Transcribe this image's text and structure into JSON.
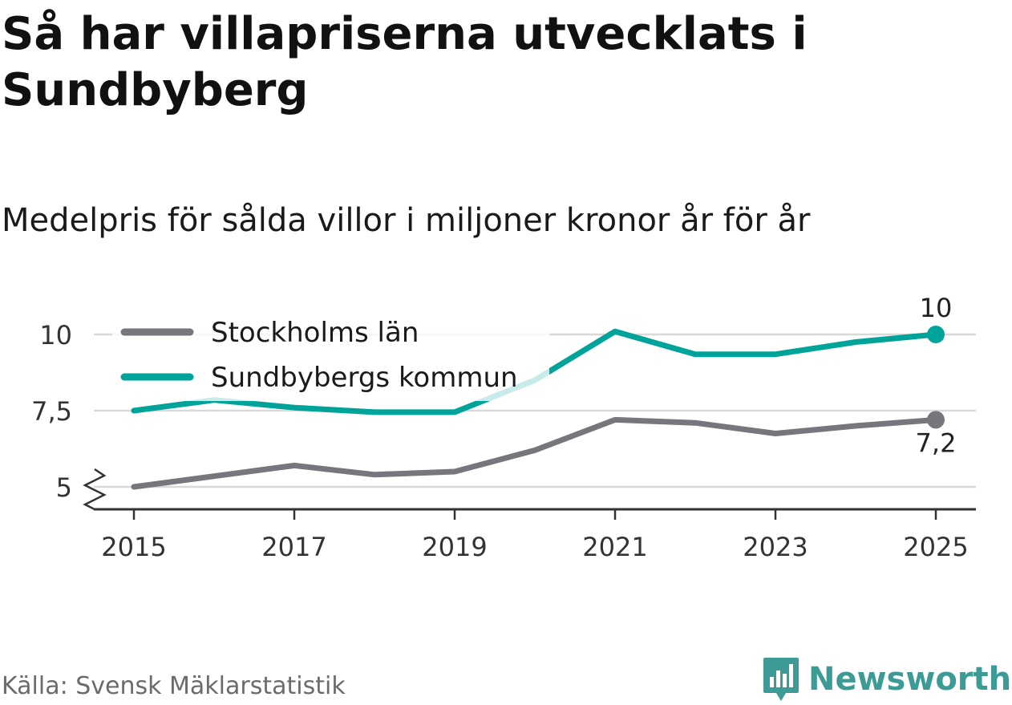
{
  "title": "Så har villapriserna utvecklats i Sundbyberg",
  "subtitle": "Medelpris för sålda villor i miljoner kronor år för år",
  "source": "Källa: Svensk Mäklarstatistik",
  "brand": "Newsworthy",
  "colors": {
    "stockholm": "#77767d",
    "sundbyberg": "#00a39a",
    "highlight_bg": "#ffffff",
    "grid": "#d9d9d9",
    "axis": "#333333",
    "brand": "#3d9b96"
  },
  "chart_data": {
    "type": "line",
    "x": [
      2015,
      2016,
      2017,
      2018,
      2019,
      2020,
      2021,
      2022,
      2023,
      2024,
      2025
    ],
    "xticks": [
      "2015",
      "2017",
      "2019",
      "2021",
      "2023",
      "2025"
    ],
    "yticks": [
      "5",
      "7,5",
      "10"
    ],
    "ylim": [
      4.3,
      10.5
    ],
    "broken_axis_at": 5,
    "legend": "top-left",
    "grid": true,
    "series": [
      {
        "name": "Stockholms län",
        "values": [
          5.0,
          5.35,
          5.7,
          5.4,
          5.5,
          6.2,
          7.2,
          7.1,
          6.75,
          7.0,
          7.2
        ],
        "end_label": "7,2"
      },
      {
        "name": "Sundbybergs kommun",
        "values": [
          7.5,
          7.85,
          7.6,
          7.45,
          7.45,
          8.5,
          10.1,
          9.35,
          9.35,
          9.75,
          10.0
        ],
        "end_label": "10"
      }
    ]
  }
}
